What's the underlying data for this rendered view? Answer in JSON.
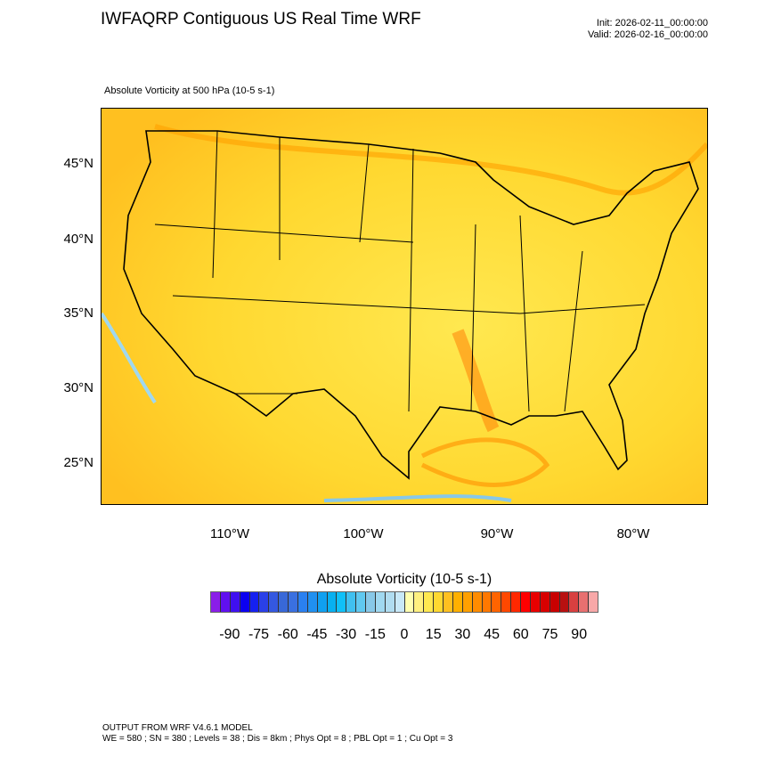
{
  "header": {
    "title": "IWFAQRP Contiguous US Real Time WRF",
    "init": "Init: 2026-02-11_00:00:00",
    "valid": "Valid: 2026-02-16_00:00:00",
    "subtitle": "Absolute Vorticity at 500 hPa   (10-5 s-1)"
  },
  "chart_data": {
    "type": "heatmap",
    "title": "Absolute Vorticity at 500 hPa",
    "units": "10-5 s-1",
    "lat_labels": [
      "45°N",
      "40°N",
      "35°N",
      "30°N",
      "25°N"
    ],
    "lat_values": [
      45,
      40,
      35,
      30,
      25
    ],
    "lon_labels": [
      "110°W",
      "100°W",
      "90°W",
      "80°W"
    ],
    "lon_values": [
      -110,
      -100,
      -90,
      -80
    ],
    "colorbar": {
      "title": "Absolute Vorticity  (10-5 s-1)",
      "tick_labels": [
        "-90",
        "-75",
        "-60",
        "-45",
        "-30",
        "-15",
        "0",
        "15",
        "30",
        "45",
        "60",
        "75",
        "90"
      ],
      "range": [
        -100,
        100
      ],
      "colors": [
        "#8a1ee8",
        "#6010f0",
        "#3f10f0",
        "#0b00f0",
        "#1520f0",
        "#2a40e8",
        "#3458e0",
        "#3868d8",
        "#3a70e0",
        "#2a80f0",
        "#2090f0",
        "#10a0f0",
        "#08b0f0",
        "#10c0f8",
        "#40c0f0",
        "#60c8f0",
        "#88c8e8",
        "#a0d8f0",
        "#b0dcf0",
        "#c8e8f8",
        "#ffffb0",
        "#fff080",
        "#ffe850",
        "#ffd830",
        "#ffc020",
        "#ffb000",
        "#ffa000",
        "#ff8c00",
        "#ff7800",
        "#ff6400",
        "#ff4800",
        "#ff2800",
        "#ff0000",
        "#e80000",
        "#d80000",
        "#c80000",
        "#b81010",
        "#d84040",
        "#e87070",
        "#f8a8a8"
      ]
    }
  },
  "footer": {
    "line1": "OUTPUT FROM WRF V4.6.1 MODEL",
    "line2": "WE = 580 ; SN = 380 ; Levels = 38 ; Dis = 8km ; Phys Opt = 8 ; PBL Opt = 1 ; Cu Opt = 3"
  }
}
